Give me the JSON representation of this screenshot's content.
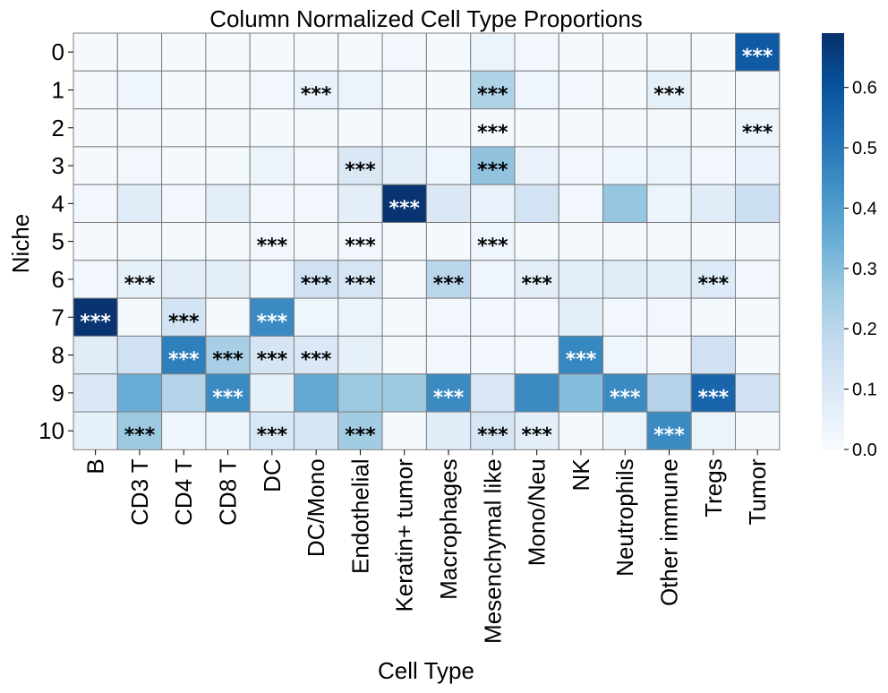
{
  "chart_data": {
    "type": "heatmap",
    "title": "Column Normalized Cell Type Proportions",
    "xlabel": "Cell Type",
    "ylabel": "Niche",
    "x_categories": [
      "B",
      "CD3 T",
      "CD4 T",
      "CD8 T",
      "DC",
      "DC/Mono",
      "Endothelial",
      "Keratin+ tumor",
      "Macrophages",
      "Mesenchymal like",
      "Mono/Neu",
      "NK",
      "Neutrophils",
      "Other immune",
      "Tregs",
      "Tumor"
    ],
    "y_categories": [
      "0",
      "1",
      "2",
      "3",
      "4",
      "5",
      "6",
      "7",
      "8",
      "9",
      "10"
    ],
    "values": [
      [
        0.01,
        0.01,
        0.01,
        0.01,
        0.01,
        0.01,
        0.01,
        0.02,
        0.01,
        0.04,
        0.02,
        0.01,
        0.01,
        0.01,
        0.01,
        0.58
      ],
      [
        0.01,
        0.03,
        0.01,
        0.01,
        0.02,
        0.05,
        0.04,
        0.01,
        0.01,
        0.22,
        0.03,
        0.02,
        0.01,
        0.06,
        0.01,
        0.01
      ],
      [
        0.01,
        0.01,
        0.01,
        0.01,
        0.01,
        0.01,
        0.01,
        0.01,
        0.01,
        0.01,
        0.01,
        0.01,
        0.01,
        0.01,
        0.01,
        0.04
      ],
      [
        0.01,
        0.02,
        0.01,
        0.01,
        0.04,
        0.02,
        0.1,
        0.07,
        0.03,
        0.28,
        0.05,
        0.02,
        0.03,
        0.04,
        0.02,
        0.05
      ],
      [
        0.02,
        0.08,
        0.02,
        0.07,
        0.02,
        0.02,
        0.07,
        0.68,
        0.1,
        0.05,
        0.13,
        0.02,
        0.27,
        0.04,
        0.08,
        0.15
      ],
      [
        0.01,
        0.01,
        0.01,
        0.01,
        0.02,
        0.01,
        0.02,
        0.01,
        0.01,
        0.03,
        0.01,
        0.01,
        0.01,
        0.01,
        0.01,
        0.01
      ],
      [
        0.02,
        0.06,
        0.07,
        0.07,
        0.03,
        0.14,
        0.12,
        0.01,
        0.2,
        0.03,
        0.07,
        0.07,
        0.08,
        0.07,
        0.09,
        0.02
      ],
      [
        0.68,
        0.01,
        0.13,
        0.01,
        0.45,
        0.03,
        0.04,
        0.01,
        0.02,
        0.02,
        0.02,
        0.07,
        0.02,
        0.02,
        0.01,
        0.01
      ],
      [
        0.08,
        0.14,
        0.48,
        0.24,
        0.12,
        0.1,
        0.06,
        0.01,
        0.02,
        0.02,
        0.02,
        0.46,
        0.03,
        0.01,
        0.14,
        0.01
      ],
      [
        0.1,
        0.35,
        0.21,
        0.45,
        0.06,
        0.36,
        0.26,
        0.26,
        0.45,
        0.1,
        0.45,
        0.3,
        0.45,
        0.21,
        0.55,
        0.14
      ],
      [
        0.06,
        0.26,
        0.03,
        0.04,
        0.11,
        0.12,
        0.25,
        0.01,
        0.08,
        0.12,
        0.07,
        0.01,
        0.04,
        0.45,
        0.04,
        0.01
      ]
    ],
    "annotations": [
      [
        0,
        15,
        "***"
      ],
      [
        1,
        5,
        "***"
      ],
      [
        1,
        9,
        "***"
      ],
      [
        1,
        13,
        "***"
      ],
      [
        2,
        9,
        "***"
      ],
      [
        2,
        15,
        "***"
      ],
      [
        3,
        6,
        "***"
      ],
      [
        3,
        9,
        "***"
      ],
      [
        4,
        7,
        "***"
      ],
      [
        5,
        4,
        "***"
      ],
      [
        5,
        6,
        "***"
      ],
      [
        5,
        9,
        "***"
      ],
      [
        6,
        1,
        "***"
      ],
      [
        6,
        5,
        "***"
      ],
      [
        6,
        6,
        "***"
      ],
      [
        6,
        8,
        "***"
      ],
      [
        6,
        10,
        "***"
      ],
      [
        6,
        14,
        "***"
      ],
      [
        7,
        0,
        "***"
      ],
      [
        7,
        2,
        "***"
      ],
      [
        7,
        4,
        "***"
      ],
      [
        8,
        2,
        "***"
      ],
      [
        8,
        3,
        "***"
      ],
      [
        8,
        4,
        "***"
      ],
      [
        8,
        5,
        "***"
      ],
      [
        8,
        11,
        "***"
      ],
      [
        9,
        3,
        "***"
      ],
      [
        9,
        8,
        "***"
      ],
      [
        9,
        12,
        "***"
      ],
      [
        9,
        14,
        "***"
      ],
      [
        10,
        1,
        "***"
      ],
      [
        10,
        4,
        "***"
      ],
      [
        10,
        6,
        "***"
      ],
      [
        10,
        9,
        "***"
      ],
      [
        10,
        10,
        "***"
      ],
      [
        10,
        13,
        "***"
      ]
    ],
    "colormap": "Blues",
    "colorbar": {
      "min": 0.0,
      "max": 0.69,
      "ticks": [
        "0.0",
        "0.1",
        "0.2",
        "0.3",
        "0.4",
        "0.5",
        "0.6"
      ]
    },
    "grid": true,
    "legend": "colorbar-right"
  }
}
